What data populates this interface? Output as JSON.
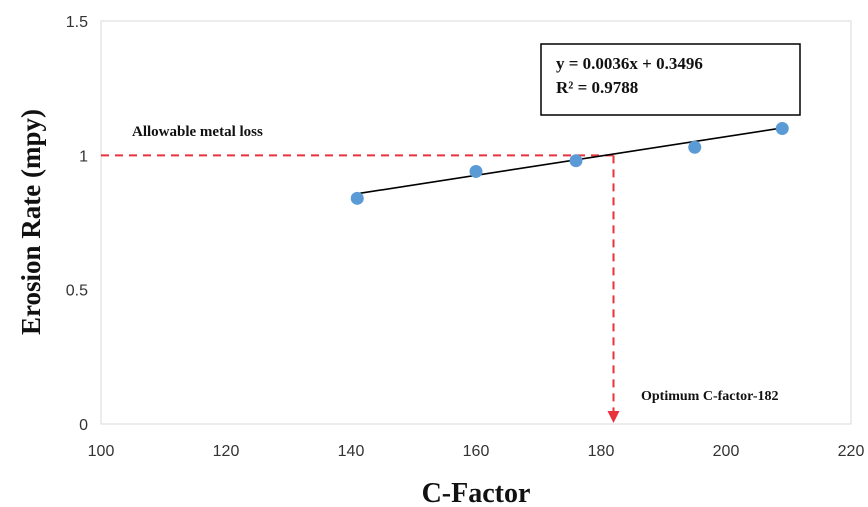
{
  "chart_data": {
    "type": "scatter",
    "xlabel": "C-Factor",
    "ylabel": "Erosion Rate (mpy)",
    "xlim": [
      100,
      220
    ],
    "ylim": [
      0,
      1.5
    ],
    "x_ticks": [
      "100",
      "120",
      "140",
      "160",
      "180",
      "200",
      "220"
    ],
    "y_ticks": [
      "0",
      "0.5",
      "1",
      "1.5"
    ],
    "grid": false,
    "series": [
      {
        "x": [
          141,
          160,
          176,
          195,
          209
        ],
        "y": [
          0.84,
          0.94,
          0.98,
          1.03,
          1.1
        ],
        "color": "#5b9bd5"
      }
    ],
    "trendline": {
      "slope": 0.0036,
      "intercept": 0.3496,
      "x_range": [
        141,
        209
      ],
      "color": "#000000"
    },
    "reference_lines": {
      "horizontal_y": 1,
      "vertical_x": 182,
      "color": "#e8323c"
    },
    "equation_box": {
      "line1": "y = 0.0036x + 0.3496",
      "line2": "R² = 0.9788"
    },
    "annotations": {
      "allowable": "Allowable metal loss",
      "optimum": "Optimum C-factor-182"
    }
  }
}
